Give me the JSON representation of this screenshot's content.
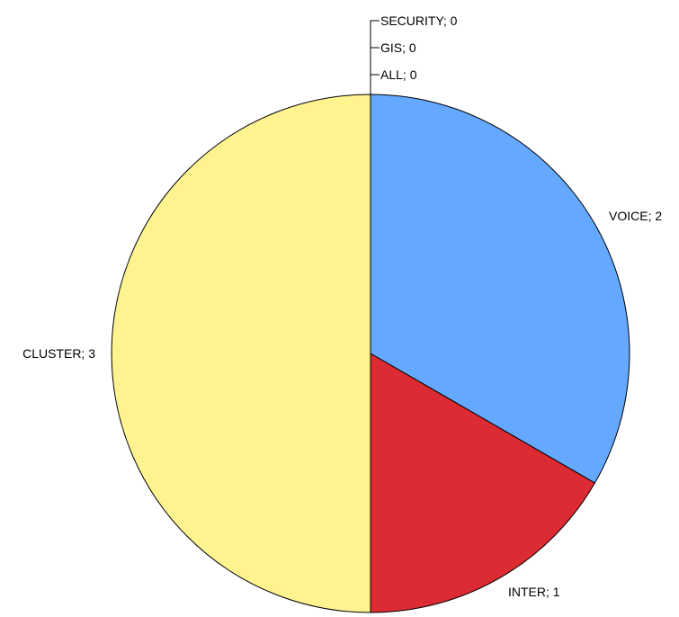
{
  "chart_data": {
    "type": "pie",
    "title": "",
    "slices": [
      {
        "label": "VOICE",
        "value": 2,
        "display": "VOICE; 2",
        "color": "#64a8ff"
      },
      {
        "label": "INTER",
        "value": 1,
        "display": "INTER; 1",
        "color": "#dc2b32"
      },
      {
        "label": "CLUSTER",
        "value": 3,
        "display": "CLUSTER; 3",
        "color": "#fff390"
      },
      {
        "label": "ALL",
        "value": 0,
        "display": "ALL; 0",
        "color": "#7f7f7f"
      },
      {
        "label": "GIS",
        "value": 0,
        "display": "GIS; 0",
        "color": "#7f7f7f"
      },
      {
        "label": "SECURITY",
        "value": 0,
        "display": "SECURITY; 0",
        "color": "#7f7f7f"
      }
    ],
    "start": "top",
    "direction": "clockwise",
    "legend": "none"
  }
}
